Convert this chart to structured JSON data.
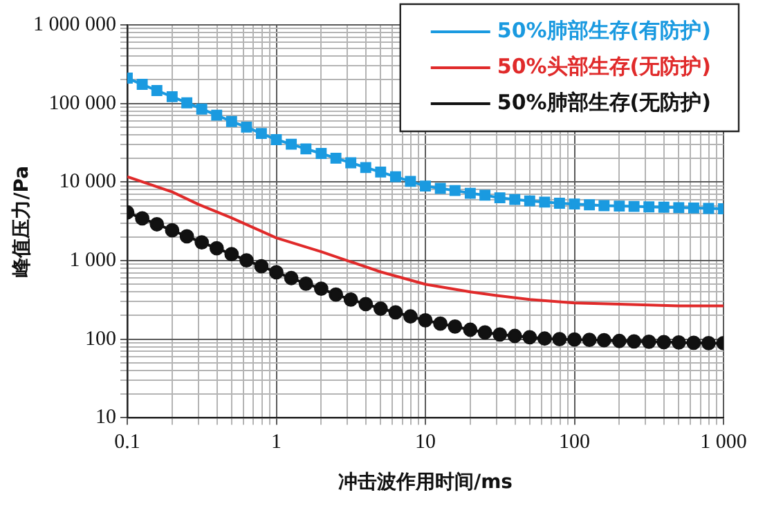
{
  "chart_data": {
    "type": "line",
    "xlabel": "冲击波作用时间/ms",
    "ylabel": "峰值压力/Pa",
    "log": "xy",
    "grid": true,
    "legend": "top right",
    "xlim": [
      0.1,
      1000
    ],
    "ylim": [
      10,
      1000000
    ],
    "xticks": [
      0.1,
      {
        "value": 0.2,
        "label": null
      },
      {
        "value": 0.3,
        "label": null
      },
      {
        "value": 0.4,
        "label": null
      },
      {
        "value": 0.5,
        "label": null
      },
      {
        "value": 0.6,
        "label": null
      },
      {
        "value": 0.7,
        "label": null
      },
      {
        "value": 0.8,
        "label": null
      },
      {
        "value": 0.9,
        "label": null
      },
      1,
      {
        "value": 2,
        "label": null
      },
      {
        "value": 3,
        "label": null
      },
      {
        "value": 4,
        "label": null
      },
      {
        "value": 5,
        "label": null
      },
      {
        "value": 6,
        "label": null
      },
      {
        "value": 7,
        "label": null
      },
      {
        "value": 8,
        "label": null
      },
      {
        "value": 9,
        "label": null
      },
      10,
      {
        "value": 20,
        "label": null
      },
      {
        "value": 30,
        "label": null
      },
      {
        "value": 40,
        "label": null
      },
      {
        "value": 50,
        "label": null
      },
      {
        "value": 60,
        "label": null
      },
      {
        "value": 70,
        "label": null
      },
      {
        "value": 80,
        "label": null
      },
      {
        "value": 90,
        "label": null
      },
      100,
      {
        "value": 200,
        "label": null
      },
      {
        "value": 300,
        "label": null
      },
      {
        "value": 400,
        "label": null
      },
      {
        "value": 500,
        "label": null
      },
      {
        "value": 600,
        "label": null
      },
      {
        "value": 700,
        "label": null
      },
      {
        "value": 800,
        "label": null
      },
      {
        "value": 900,
        "label": null
      },
      {
        "value": 1000,
        "label": "1 000"
      }
    ],
    "yticks": [
      10,
      {
        "value": 20,
        "label": null
      },
      {
        "value": 30,
        "label": null
      },
      {
        "value": 40,
        "label": null
      },
      {
        "value": 50,
        "label": null
      },
      {
        "value": 60,
        "label": null
      },
      {
        "value": 70,
        "label": null
      },
      {
        "value": 80,
        "label": null
      },
      {
        "value": 90,
        "label": null
      },
      100,
      {
        "value": 200,
        "label": null
      },
      {
        "value": 300,
        "label": null
      },
      {
        "value": 400,
        "label": null
      },
      {
        "value": 500,
        "label": null
      },
      {
        "value": 600,
        "label": null
      },
      {
        "value": 700,
        "label": null
      },
      {
        "value": 800,
        "label": null
      },
      {
        "value": 900,
        "label": null
      },
      {
        "value": 1000,
        "label": "1 000"
      },
      {
        "value": 2000,
        "label": null
      },
      {
        "value": 3000,
        "label": null
      },
      {
        "value": 4000,
        "label": null
      },
      {
        "value": 5000,
        "label": null
      },
      {
        "value": 6000,
        "label": null
      },
      {
        "value": 7000,
        "label": null
      },
      {
        "value": 8000,
        "label": null
      },
      {
        "value": 9000,
        "label": null
      },
      {
        "value": 10000,
        "label": "10 000"
      },
      {
        "value": 20000,
        "label": null
      },
      {
        "value": 30000,
        "label": null
      },
      {
        "value": 40000,
        "label": null
      },
      {
        "value": 50000,
        "label": null
      },
      {
        "value": 60000,
        "label": null
      },
      {
        "value": 70000,
        "label": null
      },
      {
        "value": 80000,
        "label": null
      },
      {
        "value": 90000,
        "label": null
      },
      {
        "value": 100000,
        "label": "100 000"
      },
      {
        "value": 200000,
        "label": null
      },
      {
        "value": 300000,
        "label": null
      },
      {
        "value": 400000,
        "label": null
      },
      {
        "value": 500000,
        "label": null
      },
      {
        "value": 600000,
        "label": null
      },
      {
        "value": 700000,
        "label": null
      },
      {
        "value": 800000,
        "label": null
      },
      {
        "value": 900000,
        "label": null
      },
      {
        "value": 1000000,
        "label": "1 000 000"
      }
    ],
    "series": [
      {
        "name": "50%肺部生存(有防护)",
        "color": "#1a9ae0",
        "marker": "square",
        "x": [
          0.1,
          0.126,
          0.158,
          0.2,
          0.251,
          0.316,
          0.398,
          0.501,
          0.631,
          0.794,
          1,
          1.26,
          1.58,
          2,
          2.51,
          3.16,
          3.98,
          5.01,
          6.31,
          7.94,
          10,
          12.6,
          15.8,
          20,
          25.1,
          31.6,
          39.8,
          50.1,
          63.1,
          79.4,
          100,
          126,
          158,
          200,
          251,
          316,
          398,
          501,
          631,
          794,
          1000
        ],
        "values": [
          210000,
          175000,
          146000,
          122000,
          102000,
          85000,
          71000,
          59000,
          50000,
          41500,
          34700,
          30300,
          26400,
          23100,
          20100,
          17600,
          15300,
          13400,
          11700,
          10200,
          8900,
          8300,
          7800,
          7200,
          6800,
          6300,
          6000,
          5750,
          5560,
          5370,
          5250,
          5130,
          5010,
          4950,
          4900,
          4840,
          4790,
          4730,
          4680,
          4620,
          4570
        ]
      },
      {
        "name": "50%头部生存(无防护)",
        "color": "#e02a2a",
        "marker": "none",
        "x": [
          0.1,
          0.2,
          0.3,
          0.5,
          1,
          2,
          3,
          5,
          10,
          20,
          30,
          50,
          100,
          200,
          500,
          1000
        ],
        "values": [
          11700,
          7500,
          5200,
          3500,
          1950,
          1300,
          1000,
          720,
          500,
          400,
          360,
          320,
          290,
          280,
          265,
          265
        ]
      },
      {
        "name": "50%肺部生存(无防护)",
        "color": "#111111",
        "marker": "circle",
        "x": [
          0.1,
          0.126,
          0.158,
          0.2,
          0.251,
          0.316,
          0.398,
          0.501,
          0.631,
          0.794,
          1,
          1.26,
          1.58,
          2,
          2.51,
          3.16,
          3.98,
          5.01,
          6.31,
          7.94,
          10,
          12.6,
          15.8,
          20,
          25.1,
          31.6,
          39.8,
          50.1,
          63.1,
          79.4,
          100,
          126,
          158,
          200,
          251,
          316,
          398,
          501,
          631,
          794,
          1000
        ],
        "values": [
          4110,
          3450,
          2900,
          2430,
          2040,
          1710,
          1440,
          1210,
          1010,
          850,
          710,
          600,
          510,
          440,
          370,
          320,
          280,
          245,
          220,
          195,
          174,
          158,
          145,
          132,
          122,
          115,
          110,
          106,
          102,
          100,
          99,
          98,
          97,
          95,
          94,
          93,
          92,
          91,
          90,
          89,
          89
        ]
      }
    ]
  }
}
